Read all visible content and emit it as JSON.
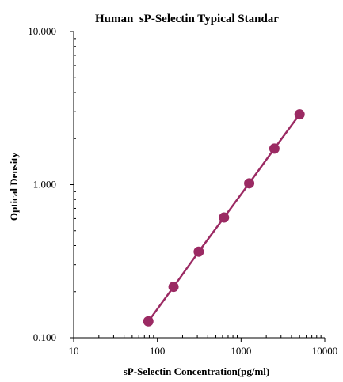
{
  "chart_data": {
    "type": "scatter",
    "title": "Human  sP-Selectin Typical Standar",
    "xlabel": "sP-Selectin Concentration(pg/ml)",
    "ylabel": "Optical Density",
    "x_scale": "log",
    "y_scale": "log",
    "xlim": [
      10,
      10000
    ],
    "ylim": [
      0.1,
      10
    ],
    "x_ticks": [
      10,
      100,
      1000,
      10000
    ],
    "x_tick_labels": [
      "10",
      "100",
      "1000",
      "10000"
    ],
    "y_ticks": [
      0.1,
      1,
      10
    ],
    "y_tick_labels": [
      "0.100",
      "1.000",
      "10.000"
    ],
    "grid": false,
    "legend": "none",
    "series": [
      {
        "color": "#9b2a63",
        "marker": "circle",
        "line": true,
        "points": [
          {
            "x": 78,
            "y": 0.128
          },
          {
            "x": 156,
            "y": 0.215
          },
          {
            "x": 312,
            "y": 0.365
          },
          {
            "x": 625,
            "y": 0.61
          },
          {
            "x": 1250,
            "y": 1.02
          },
          {
            "x": 2500,
            "y": 1.72
          },
          {
            "x": 5000,
            "y": 2.88
          }
        ]
      }
    ]
  }
}
